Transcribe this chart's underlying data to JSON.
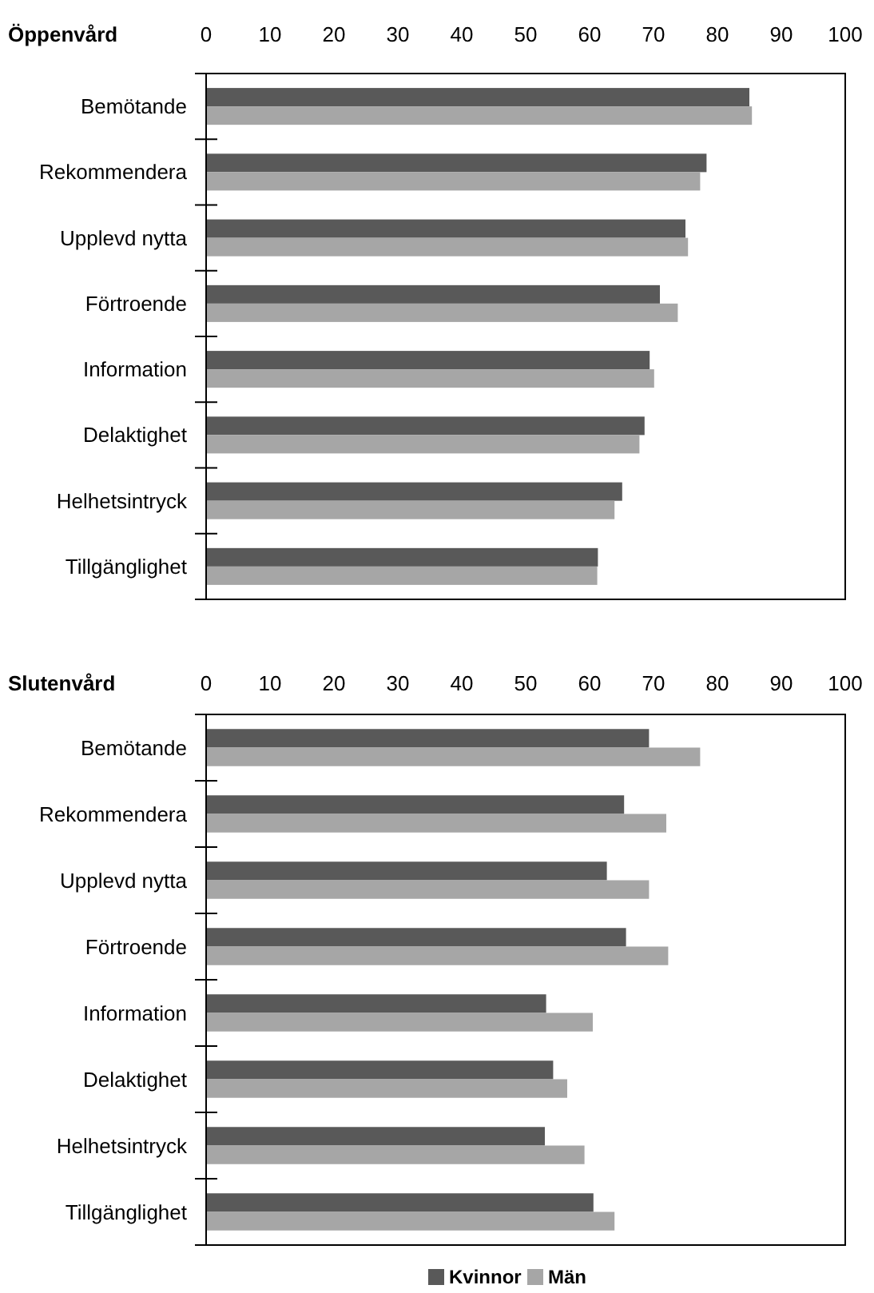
{
  "chart_data": [
    {
      "type": "bar",
      "orientation": "horizontal",
      "title": "Öppenvård",
      "categories": [
        "Bemötande",
        "Rekommendera",
        "Upplevd nytta",
        "Förtroende",
        "Information",
        "Delaktighet",
        "Helhetsintryck",
        "Tillgänglighet"
      ],
      "series": [
        {
          "color": "#595959",
          "values": [
            85.0,
            78.3,
            75.0,
            71.0,
            69.4,
            68.6,
            65.1,
            61.3
          ]
        },
        {
          "color": "#a6a6a6",
          "values": [
            85.4,
            77.3,
            75.4,
            73.8,
            70.1,
            67.8,
            63.9,
            61.2
          ]
        }
      ],
      "xlim": [
        0,
        100
      ],
      "xticks": [
        0,
        10,
        20,
        30,
        40,
        50,
        60,
        70,
        80,
        90,
        100
      ],
      "grid": false,
      "legend": false
    },
    {
      "type": "bar",
      "orientation": "horizontal",
      "title": "Slutenvård",
      "categories": [
        "Bemötande",
        "Rekommendera",
        "Upplevd nytta",
        "Förtroende",
        "Information",
        "Delaktighet",
        "Helhetsintryck",
        "Tillgänglighet"
      ],
      "series": [
        {
          "name": "Kvinnor",
          "color": "#595959",
          "values": [
            69.3,
            65.4,
            62.7,
            65.7,
            53.2,
            54.3,
            53.0,
            60.6
          ]
        },
        {
          "name": "Män",
          "color": "#a6a6a6",
          "values": [
            77.3,
            72.0,
            69.3,
            72.3,
            60.5,
            56.5,
            59.2,
            63.9
          ]
        }
      ],
      "xlim": [
        0,
        100
      ],
      "xticks": [
        0,
        10,
        20,
        30,
        40,
        50,
        60,
        70,
        80,
        90,
        100
      ],
      "grid": false,
      "legend": "bottom"
    }
  ]
}
